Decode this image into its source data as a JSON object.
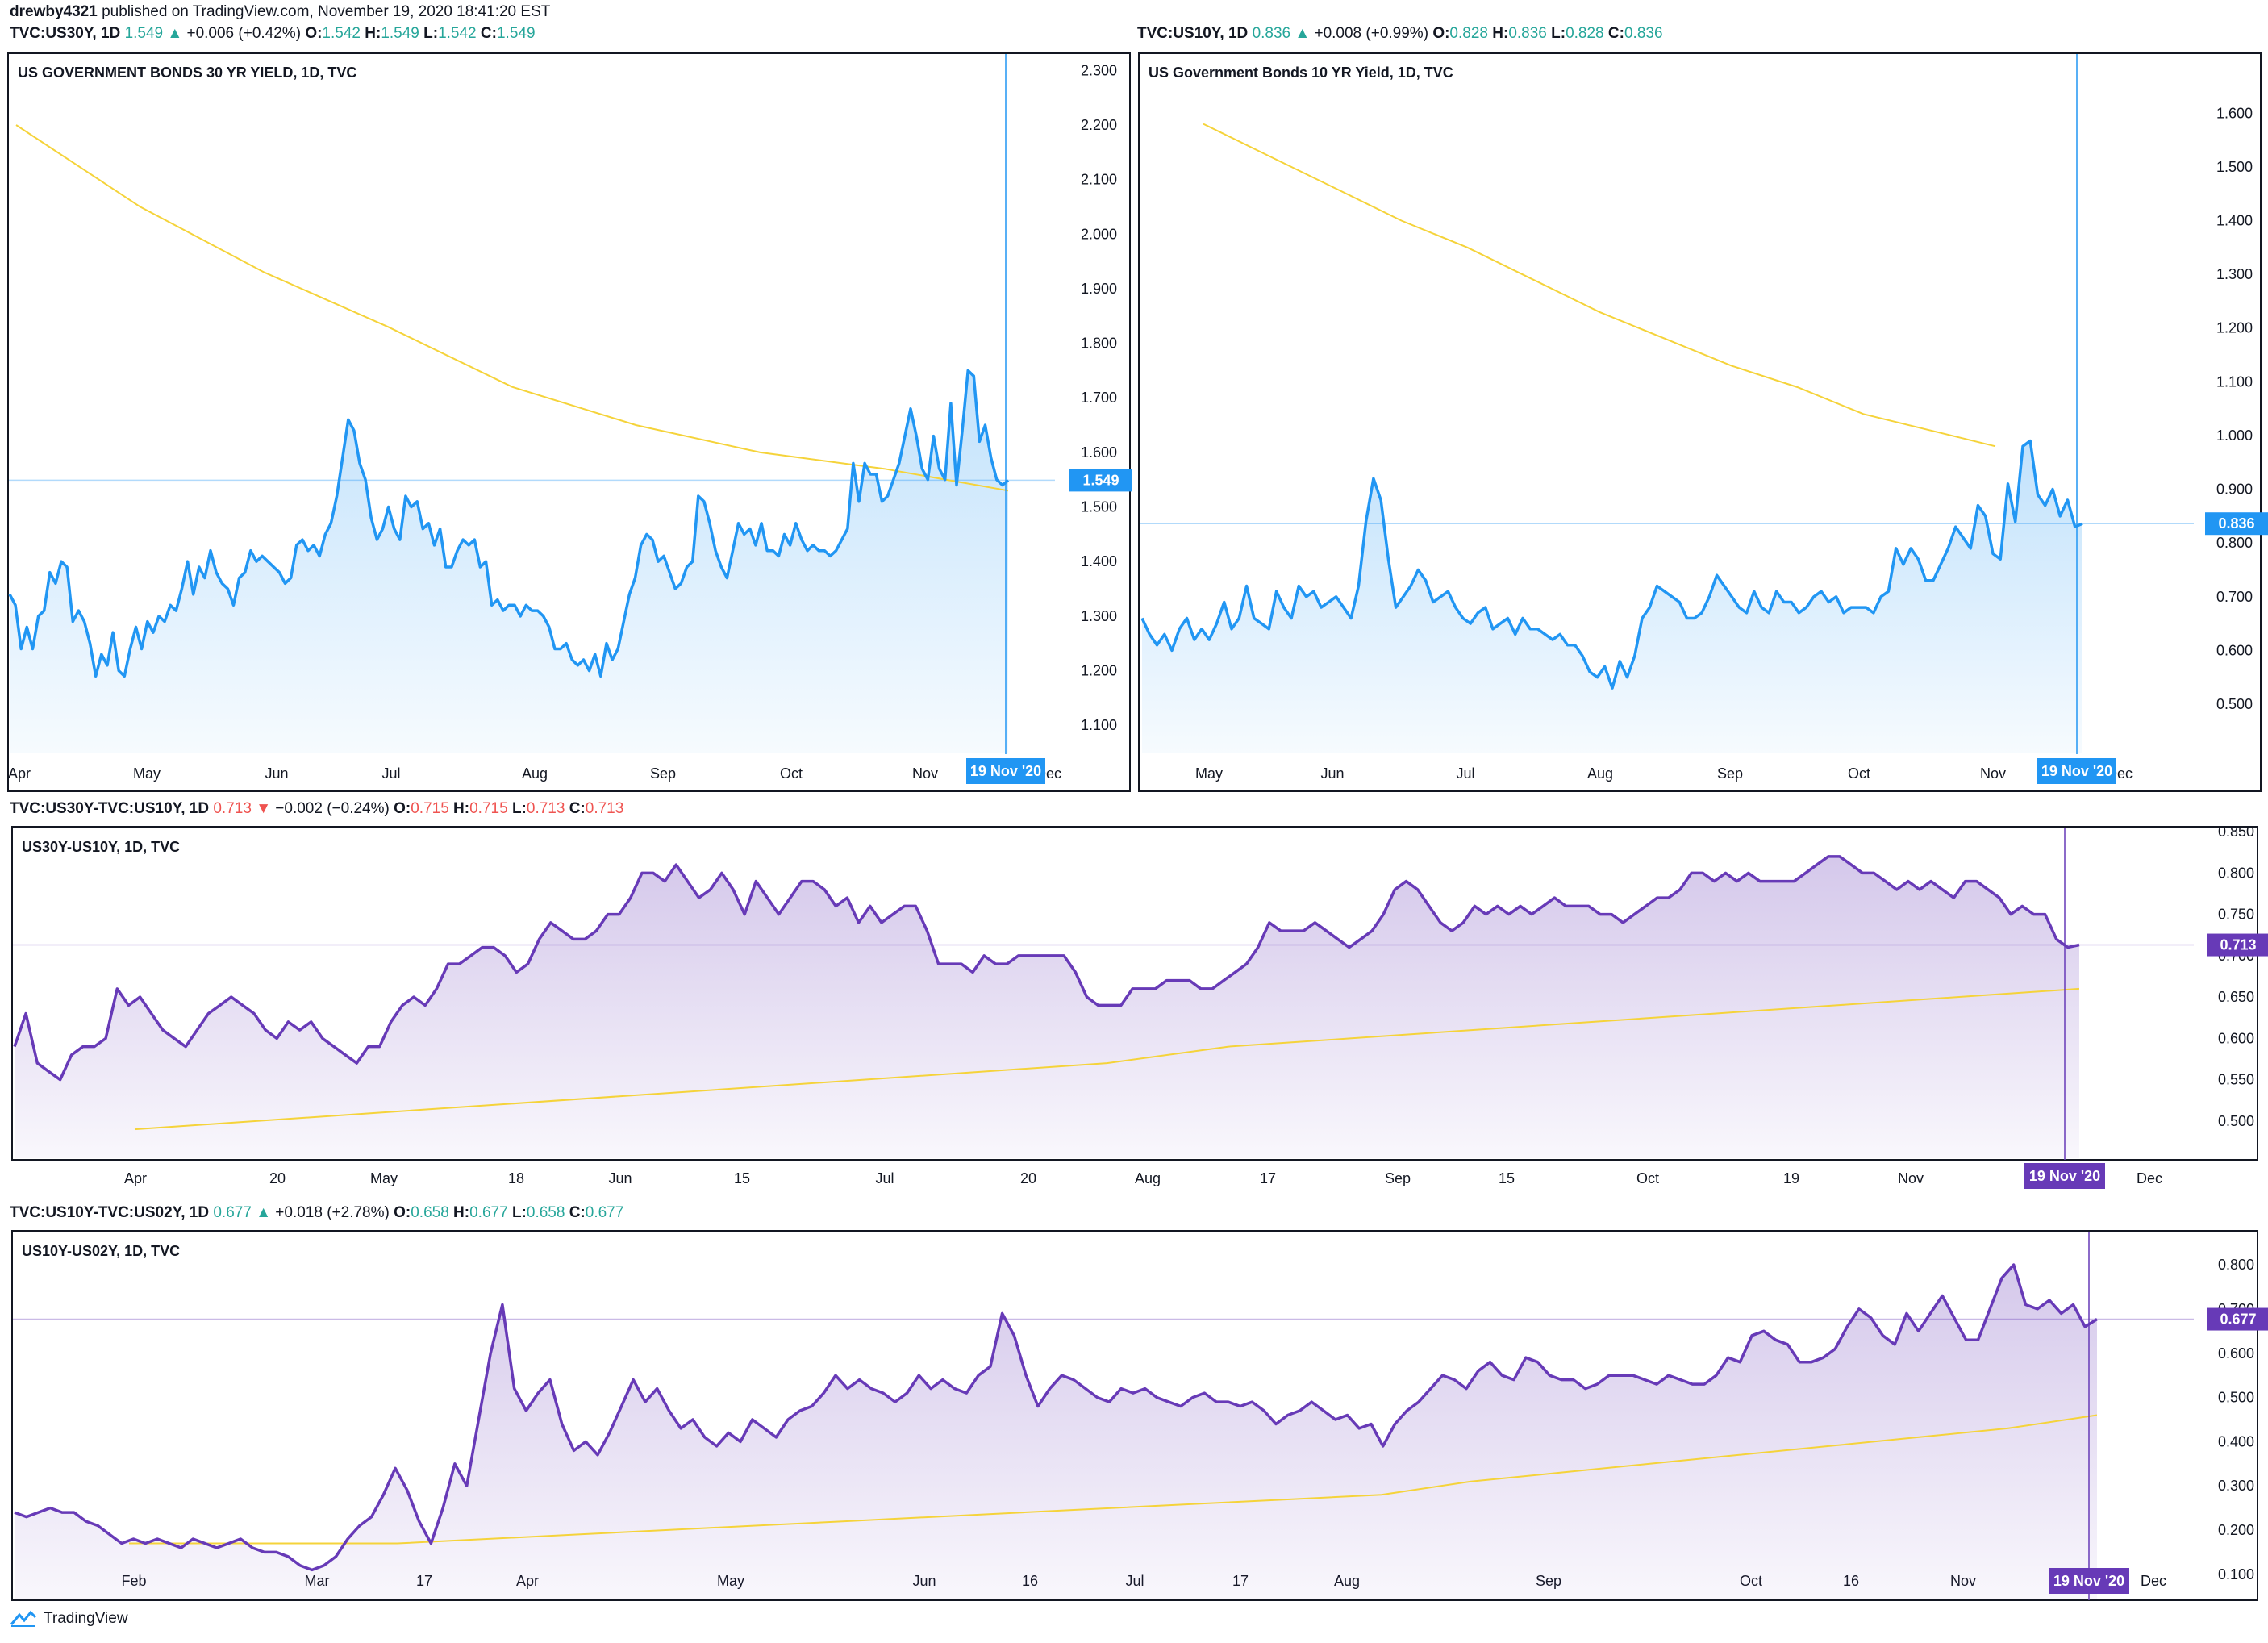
{
  "header": {
    "author": "drewby4321",
    "published": "published on TradingView.com, November 19, 2020 18:41:20 EST"
  },
  "legends": [
    {
      "symbol": "TVC:US30Y, 1D",
      "close": "1.549",
      "arrow": "▲",
      "change": "+0.006 (+0.42%)",
      "o": "1.542",
      "h": "1.549",
      "l": "1.542",
      "c": "1.549",
      "dir": "up"
    },
    {
      "symbol": "TVC:US10Y, 1D",
      "close": "0.836",
      "arrow": "▲",
      "change": "+0.008 (+0.99%)",
      "o": "0.828",
      "h": "0.836",
      "l": "0.828",
      "c": "0.836",
      "dir": "up"
    },
    {
      "symbol": "TVC:US30Y-TVC:US10Y, 1D",
      "close": "0.713",
      "arrow": "▼",
      "change": "−0.002 (−0.24%)",
      "o": "0.715",
      "h": "0.715",
      "l": "0.713",
      "c": "0.713",
      "dir": "down"
    },
    {
      "symbol": "TVC:US10Y-TVC:US02Y, 1D",
      "close": "0.677",
      "arrow": "▲",
      "change": "+0.018 (+2.78%)",
      "o": "0.658",
      "h": "0.677",
      "l": "0.658",
      "c": "0.677",
      "dir": "up"
    }
  ],
  "footer": {
    "brand": "TradingView"
  },
  "colors": {
    "blue": "#2196f3",
    "purple": "#673ab7",
    "yellow": "#f5d33a",
    "grid": "#e0e3eb"
  },
  "chart_data": [
    {
      "type": "area",
      "title": "US GOVERNMENT BONDS 30 YR YIELD, 1D, TVC",
      "ylim": [
        1.05,
        2.33
      ],
      "yticks": [
        "2.300",
        "2.200",
        "2.100",
        "2.000",
        "1.900",
        "1.800",
        "1.700",
        "1.600",
        "1.500",
        "1.400",
        "1.300",
        "1.200",
        "1.100"
      ],
      "xticks": [
        "Apr",
        "May",
        "Jun",
        "Jul",
        "Aug",
        "Sep",
        "Oct",
        "Nov",
        "Dec"
      ],
      "last_value": "1.549",
      "crosshair_label": "19 Nov '20",
      "series": [
        {
          "values": [
            1.34,
            1.32,
            1.24,
            1.28,
            1.24,
            1.3,
            1.31,
            1.38,
            1.36,
            1.4,
            1.39,
            1.29,
            1.31,
            1.29,
            1.25,
            1.19,
            1.23,
            1.21,
            1.27,
            1.2,
            1.19,
            1.24,
            1.28,
            1.24,
            1.29,
            1.27,
            1.3,
            1.29,
            1.32,
            1.31,
            1.35,
            1.4,
            1.34,
            1.39,
            1.37,
            1.42,
            1.38,
            1.36,
            1.35,
            1.32,
            1.37,
            1.38,
            1.42,
            1.4,
            1.41,
            1.4,
            1.39,
            1.38,
            1.36,
            1.37,
            1.43,
            1.44,
            1.42,
            1.43,
            1.41,
            1.45,
            1.47,
            1.52,
            1.59,
            1.66,
            1.64,
            1.58,
            1.55,
            1.48,
            1.44,
            1.46,
            1.5,
            1.46,
            1.44,
            1.52,
            1.5,
            1.51,
            1.46,
            1.47,
            1.43,
            1.46,
            1.39,
            1.39,
            1.42,
            1.44,
            1.43,
            1.44,
            1.39,
            1.4,
            1.32,
            1.33,
            1.31,
            1.32,
            1.32,
            1.3,
            1.32,
            1.31,
            1.31,
            1.3,
            1.28,
            1.24,
            1.24,
            1.25,
            1.22,
            1.21,
            1.22,
            1.2,
            1.23,
            1.19,
            1.25,
            1.22,
            1.24,
            1.29,
            1.34,
            1.37,
            1.43,
            1.45,
            1.44,
            1.4,
            1.41,
            1.38,
            1.35,
            1.36,
            1.39,
            1.4,
            1.52,
            1.51,
            1.47,
            1.42,
            1.39,
            1.37,
            1.42,
            1.47,
            1.45,
            1.46,
            1.43,
            1.47,
            1.42,
            1.42,
            1.41,
            1.45,
            1.43,
            1.47,
            1.44,
            1.42,
            1.43,
            1.42,
            1.42,
            1.41,
            1.42,
            1.44,
            1.46,
            1.58,
            1.51,
            1.58,
            1.56,
            1.56,
            1.51,
            1.52,
            1.55,
            1.58,
            1.63,
            1.68,
            1.63,
            1.57,
            1.55,
            1.63,
            1.57,
            1.55,
            1.69,
            1.54,
            1.64,
            1.75,
            1.74,
            1.62,
            1.65,
            1.59,
            1.55,
            1.54,
            1.549
          ]
        },
        {
          "name": "",
          "values": [
            2.2,
            2.05,
            1.93,
            1.83,
            1.72,
            1.65,
            1.6,
            1.57,
            1.53
          ]
        }
      ]
    },
    {
      "type": "area",
      "title": "US Government Bonds 10 YR Yield, 1D, TVC",
      "ylim": [
        0.41,
        1.71
      ],
      "yticks": [
        "1.600",
        "1.500",
        "1.400",
        "1.300",
        "1.200",
        "1.100",
        "1.000",
        "0.900",
        "0.800",
        "0.700",
        "0.600",
        "0.500"
      ],
      "xticks": [
        "May",
        "Jun",
        "Jul",
        "Aug",
        "Sep",
        "Oct",
        "Nov",
        "Dec"
      ],
      "last_value": "0.836",
      "crosshair_label": "19 Nov '20",
      "series": [
        {
          "values": [
            0.66,
            0.63,
            0.61,
            0.63,
            0.6,
            0.64,
            0.66,
            0.62,
            0.64,
            0.62,
            0.65,
            0.69,
            0.64,
            0.66,
            0.72,
            0.66,
            0.65,
            0.64,
            0.71,
            0.68,
            0.66,
            0.72,
            0.7,
            0.71,
            0.68,
            0.69,
            0.7,
            0.68,
            0.66,
            0.72,
            0.84,
            0.92,
            0.88,
            0.77,
            0.68,
            0.7,
            0.72,
            0.75,
            0.73,
            0.69,
            0.7,
            0.71,
            0.68,
            0.66,
            0.65,
            0.67,
            0.68,
            0.64,
            0.65,
            0.66,
            0.63,
            0.66,
            0.64,
            0.64,
            0.63,
            0.62,
            0.63,
            0.61,
            0.61,
            0.59,
            0.56,
            0.55,
            0.57,
            0.53,
            0.58,
            0.55,
            0.59,
            0.66,
            0.68,
            0.72,
            0.71,
            0.7,
            0.69,
            0.66,
            0.66,
            0.67,
            0.7,
            0.74,
            0.72,
            0.7,
            0.68,
            0.67,
            0.71,
            0.68,
            0.67,
            0.71,
            0.69,
            0.69,
            0.67,
            0.68,
            0.7,
            0.71,
            0.69,
            0.7,
            0.67,
            0.68,
            0.68,
            0.68,
            0.67,
            0.7,
            0.71,
            0.79,
            0.76,
            0.79,
            0.77,
            0.73,
            0.73,
            0.76,
            0.79,
            0.83,
            0.81,
            0.79,
            0.87,
            0.85,
            0.78,
            0.77,
            0.91,
            0.84,
            0.98,
            0.99,
            0.89,
            0.87,
            0.9,
            0.85,
            0.88,
            0.83,
            0.836
          ]
        },
        {
          "name": "",
          "values": [
            1.58,
            1.52,
            1.46,
            1.4,
            1.35,
            1.29,
            1.23,
            1.18,
            1.13,
            1.09,
            1.04,
            1.01,
            0.98
          ]
        }
      ]
    },
    {
      "type": "area",
      "title": "US30Y-US10Y, 1D, TVC",
      "ylim": [
        0.455,
        0.855
      ],
      "yticks": [
        "0.850",
        "0.800",
        "0.750",
        "0.700",
        "0.650",
        "0.600",
        "0.550",
        "0.500"
      ],
      "xticks": [
        "Apr",
        "20",
        "May",
        "18",
        "Jun",
        "15",
        "Jul",
        "20",
        "Aug",
        "17",
        "Sep",
        "15",
        "Oct",
        "19",
        "Nov",
        "Dec"
      ],
      "last_value": "0.713",
      "crosshair_label": "19 Nov '20",
      "series": [
        {
          "values": [
            0.59,
            0.63,
            0.57,
            0.56,
            0.55,
            0.58,
            0.59,
            0.59,
            0.6,
            0.66,
            0.64,
            0.65,
            0.63,
            0.61,
            0.6,
            0.59,
            0.61,
            0.63,
            0.64,
            0.65,
            0.64,
            0.63,
            0.61,
            0.6,
            0.62,
            0.61,
            0.62,
            0.6,
            0.59,
            0.58,
            0.57,
            0.59,
            0.59,
            0.62,
            0.64,
            0.65,
            0.64,
            0.66,
            0.69,
            0.69,
            0.7,
            0.71,
            0.71,
            0.7,
            0.68,
            0.69,
            0.72,
            0.74,
            0.73,
            0.72,
            0.72,
            0.73,
            0.75,
            0.75,
            0.77,
            0.8,
            0.8,
            0.79,
            0.81,
            0.79,
            0.77,
            0.78,
            0.8,
            0.78,
            0.75,
            0.79,
            0.77,
            0.75,
            0.77,
            0.79,
            0.79,
            0.78,
            0.76,
            0.77,
            0.74,
            0.76,
            0.74,
            0.75,
            0.76,
            0.76,
            0.73,
            0.69,
            0.69,
            0.69,
            0.68,
            0.7,
            0.69,
            0.69,
            0.7,
            0.7,
            0.7,
            0.7,
            0.7,
            0.68,
            0.65,
            0.64,
            0.64,
            0.64,
            0.66,
            0.66,
            0.66,
            0.67,
            0.67,
            0.67,
            0.66,
            0.66,
            0.67,
            0.68,
            0.69,
            0.71,
            0.74,
            0.73,
            0.73,
            0.73,
            0.74,
            0.73,
            0.72,
            0.71,
            0.72,
            0.73,
            0.75,
            0.78,
            0.79,
            0.78,
            0.76,
            0.74,
            0.73,
            0.74,
            0.76,
            0.75,
            0.76,
            0.75,
            0.76,
            0.75,
            0.76,
            0.77,
            0.76,
            0.76,
            0.76,
            0.75,
            0.75,
            0.74,
            0.75,
            0.76,
            0.77,
            0.77,
            0.78,
            0.8,
            0.8,
            0.79,
            0.8,
            0.79,
            0.8,
            0.79,
            0.79,
            0.79,
            0.79,
            0.8,
            0.81,
            0.82,
            0.82,
            0.81,
            0.8,
            0.8,
            0.79,
            0.78,
            0.79,
            0.78,
            0.79,
            0.78,
            0.77,
            0.79,
            0.79,
            0.78,
            0.77,
            0.75,
            0.76,
            0.75,
            0.75,
            0.72,
            0.71,
            0.713
          ]
        },
        {
          "name": "",
          "values": [
            0.49,
            0.5,
            0.51,
            0.52,
            0.53,
            0.54,
            0.55,
            0.56,
            0.57,
            0.59,
            0.6,
            0.61,
            0.62,
            0.63,
            0.64,
            0.65,
            0.66
          ]
        }
      ]
    },
    {
      "type": "area",
      "title": "US10Y-US02Y, 1D, TVC",
      "ylim": [
        0.045,
        0.875
      ],
      "yticks": [
        "0.800",
        "0.700",
        "0.600",
        "0.500",
        "0.400",
        "0.300",
        "0.200",
        "0.100"
      ],
      "xticks": [
        "Feb",
        "Mar",
        "17",
        "Apr",
        "May",
        "Jun",
        "16",
        "Jul",
        "17",
        "Aug",
        "Sep",
        "Oct",
        "16",
        "Nov",
        "Dec"
      ],
      "last_value": "0.677",
      "crosshair_label": "19 Nov '20",
      "series": [
        {
          "values": [
            0.24,
            0.23,
            0.24,
            0.25,
            0.24,
            0.24,
            0.22,
            0.21,
            0.19,
            0.17,
            0.18,
            0.17,
            0.18,
            0.17,
            0.16,
            0.18,
            0.17,
            0.16,
            0.17,
            0.18,
            0.16,
            0.15,
            0.15,
            0.14,
            0.12,
            0.11,
            0.12,
            0.14,
            0.18,
            0.21,
            0.23,
            0.28,
            0.34,
            0.29,
            0.22,
            0.17,
            0.25,
            0.35,
            0.3,
            0.45,
            0.6,
            0.71,
            0.52,
            0.47,
            0.51,
            0.54,
            0.44,
            0.38,
            0.4,
            0.37,
            0.42,
            0.48,
            0.54,
            0.49,
            0.52,
            0.47,
            0.43,
            0.45,
            0.41,
            0.39,
            0.42,
            0.4,
            0.45,
            0.43,
            0.41,
            0.45,
            0.47,
            0.48,
            0.51,
            0.55,
            0.52,
            0.54,
            0.52,
            0.51,
            0.49,
            0.51,
            0.55,
            0.52,
            0.54,
            0.52,
            0.51,
            0.55,
            0.57,
            0.69,
            0.64,
            0.55,
            0.48,
            0.52,
            0.55,
            0.54,
            0.52,
            0.5,
            0.49,
            0.52,
            0.51,
            0.52,
            0.5,
            0.49,
            0.48,
            0.5,
            0.51,
            0.49,
            0.49,
            0.48,
            0.49,
            0.47,
            0.44,
            0.46,
            0.47,
            0.49,
            0.47,
            0.45,
            0.46,
            0.43,
            0.44,
            0.39,
            0.44,
            0.47,
            0.49,
            0.52,
            0.55,
            0.54,
            0.52,
            0.56,
            0.58,
            0.55,
            0.54,
            0.59,
            0.58,
            0.55,
            0.54,
            0.54,
            0.52,
            0.53,
            0.55,
            0.55,
            0.55,
            0.54,
            0.53,
            0.55,
            0.54,
            0.53,
            0.53,
            0.55,
            0.59,
            0.58,
            0.64,
            0.65,
            0.63,
            0.62,
            0.58,
            0.58,
            0.59,
            0.61,
            0.66,
            0.7,
            0.68,
            0.64,
            0.62,
            0.69,
            0.65,
            0.69,
            0.73,
            0.68,
            0.63,
            0.63,
            0.7,
            0.77,
            0.8,
            0.71,
            0.7,
            0.72,
            0.69,
            0.71,
            0.66,
            0.677
          ]
        },
        {
          "name": "",
          "values": [
            0.17,
            0.17,
            0.17,
            0.17,
            0.18,
            0.19,
            0.2,
            0.21,
            0.22,
            0.23,
            0.24,
            0.25,
            0.26,
            0.27,
            0.28,
            0.31,
            0.33,
            0.35,
            0.37,
            0.39,
            0.41,
            0.43,
            0.46
          ]
        }
      ]
    }
  ]
}
